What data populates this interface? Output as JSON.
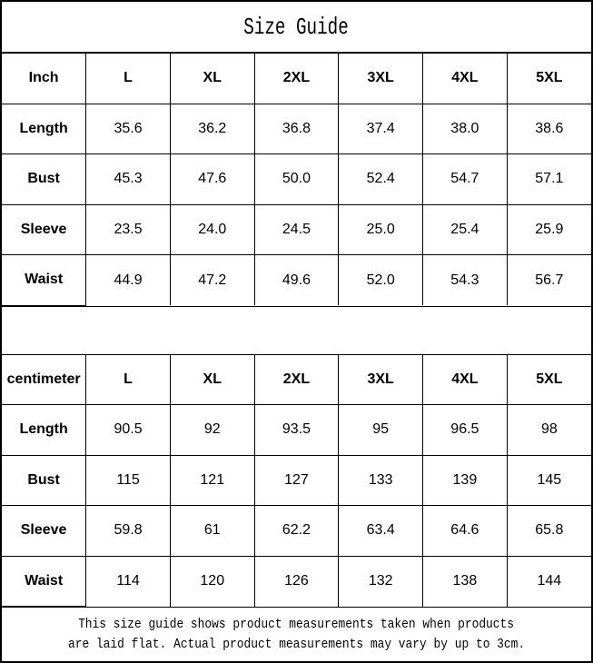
{
  "page": {
    "title": "Size Guide"
  },
  "footer": {
    "line1": "This size guide shows product measurements taken when products",
    "line2": "are laid flat. Actual product measurements may vary by up to 3cm."
  },
  "chart_data": [
    {
      "type": "table",
      "unit": "Inch",
      "columns": [
        "L",
        "XL",
        "2XL",
        "3XL",
        "4XL",
        "5XL"
      ],
      "rows": [
        {
          "label": "Length",
          "values": [
            "35.6",
            "36.2",
            "36.8",
            "37.4",
            "38.0",
            "38.6"
          ]
        },
        {
          "label": "Bust",
          "values": [
            "45.3",
            "47.6",
            "50.0",
            "52.4",
            "54.7",
            "57.1"
          ]
        },
        {
          "label": "Sleeve",
          "values": [
            "23.5",
            "24.0",
            "24.5",
            "25.0",
            "25.4",
            "25.9"
          ]
        },
        {
          "label": "Waist",
          "values": [
            "44.9",
            "47.2",
            "49.6",
            "52.0",
            "54.3",
            "56.7"
          ]
        }
      ]
    },
    {
      "type": "table",
      "unit": "centimeter",
      "columns": [
        "L",
        "XL",
        "2XL",
        "3XL",
        "4XL",
        "5XL"
      ],
      "rows": [
        {
          "label": "Length",
          "values": [
            "90.5",
            "92",
            "93.5",
            "95",
            "96.5",
            "98"
          ]
        },
        {
          "label": "Bust",
          "values": [
            "115",
            "121",
            "127",
            "133",
            "139",
            "145"
          ]
        },
        {
          "label": "Sleeve",
          "values": [
            "59.8",
            "61",
            "62.2",
            "63.4",
            "64.6",
            "65.8"
          ]
        },
        {
          "label": "Waist",
          "values": [
            "114",
            "120",
            "126",
            "132",
            "138",
            "144"
          ]
        }
      ]
    }
  ]
}
